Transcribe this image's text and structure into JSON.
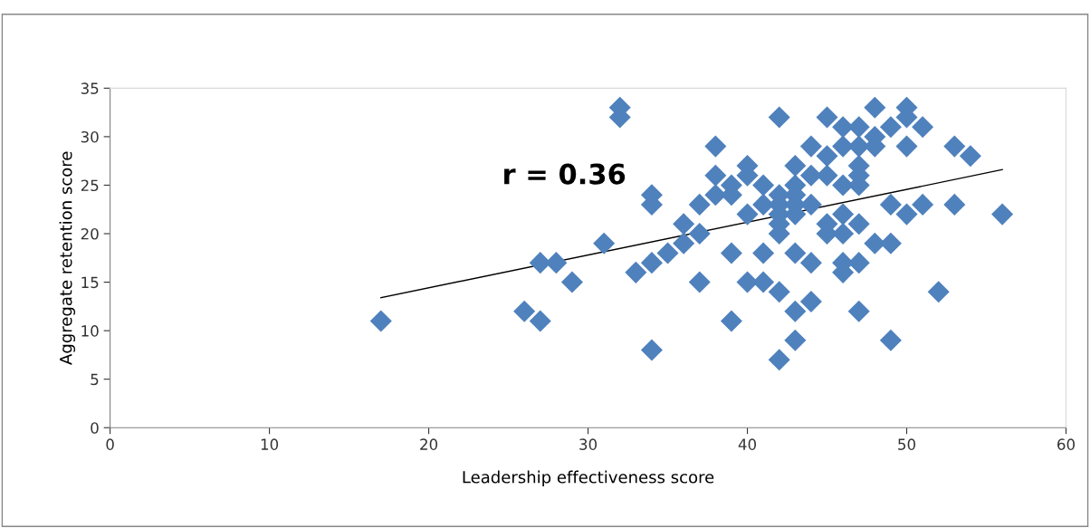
{
  "chart_data": {
    "type": "scatter",
    "xlabel": "Leadership effectiveness score",
    "ylabel": "Aggregate retention score",
    "annotations": [
      "r = 0.36"
    ],
    "xlim": [
      0,
      60
    ],
    "xticks": [
      0,
      10,
      20,
      30,
      40,
      50,
      60
    ],
    "ylim": [
      0,
      35
    ],
    "yticks": [
      0,
      5,
      10,
      15,
      20,
      25,
      30,
      35
    ],
    "grid": false,
    "legend": false,
    "marker": "diamond",
    "series": [
      {
        "color": "#4f81bd",
        "x": [
          17,
          26,
          27,
          27,
          28,
          29,
          31,
          32,
          32,
          33,
          34,
          34,
          34,
          34,
          35,
          36,
          36,
          37,
          37,
          37,
          38,
          38,
          38,
          39,
          39,
          39,
          39,
          40,
          40,
          40,
          40,
          41,
          41,
          41,
          41,
          42,
          42,
          42,
          42,
          42,
          42,
          42,
          42,
          43,
          43,
          43,
          43,
          43,
          43,
          43,
          43,
          44,
          44,
          44,
          44,
          44,
          45,
          45,
          45,
          45,
          45,
          46,
          46,
          46,
          46,
          46,
          46,
          46,
          47,
          47,
          47,
          47,
          47,
          47,
          47,
          47,
          48,
          48,
          48,
          48,
          49,
          49,
          49,
          49,
          50,
          50,
          50,
          50,
          51,
          51,
          52,
          53,
          53,
          54,
          56
        ],
        "values": [
          11,
          12,
          11,
          17,
          17,
          15,
          19,
          33,
          32,
          16,
          24,
          23,
          17,
          8,
          18,
          21,
          19,
          23,
          20,
          15,
          29,
          26,
          24,
          25,
          24,
          18,
          11,
          27,
          26,
          22,
          15,
          25,
          23,
          18,
          15,
          32,
          24,
          23,
          22,
          21,
          20,
          14,
          7,
          27,
          25,
          24,
          23,
          22,
          18,
          12,
          9,
          29,
          26,
          23,
          17,
          13,
          32,
          28,
          26,
          21,
          20,
          31,
          29,
          25,
          22,
          20,
          17,
          16,
          31,
          29,
          27,
          26,
          25,
          21,
          17,
          12,
          33,
          30,
          29,
          19,
          31,
          23,
          19,
          9,
          33,
          32,
          29,
          22,
          31,
          23,
          14,
          29,
          23,
          28,
          22
        ]
      },
      {
        "type": "line",
        "color": "#000000",
        "marker": "none",
        "x": [
          17,
          56
        ],
        "values": [
          13.4,
          26.6
        ]
      }
    ]
  }
}
